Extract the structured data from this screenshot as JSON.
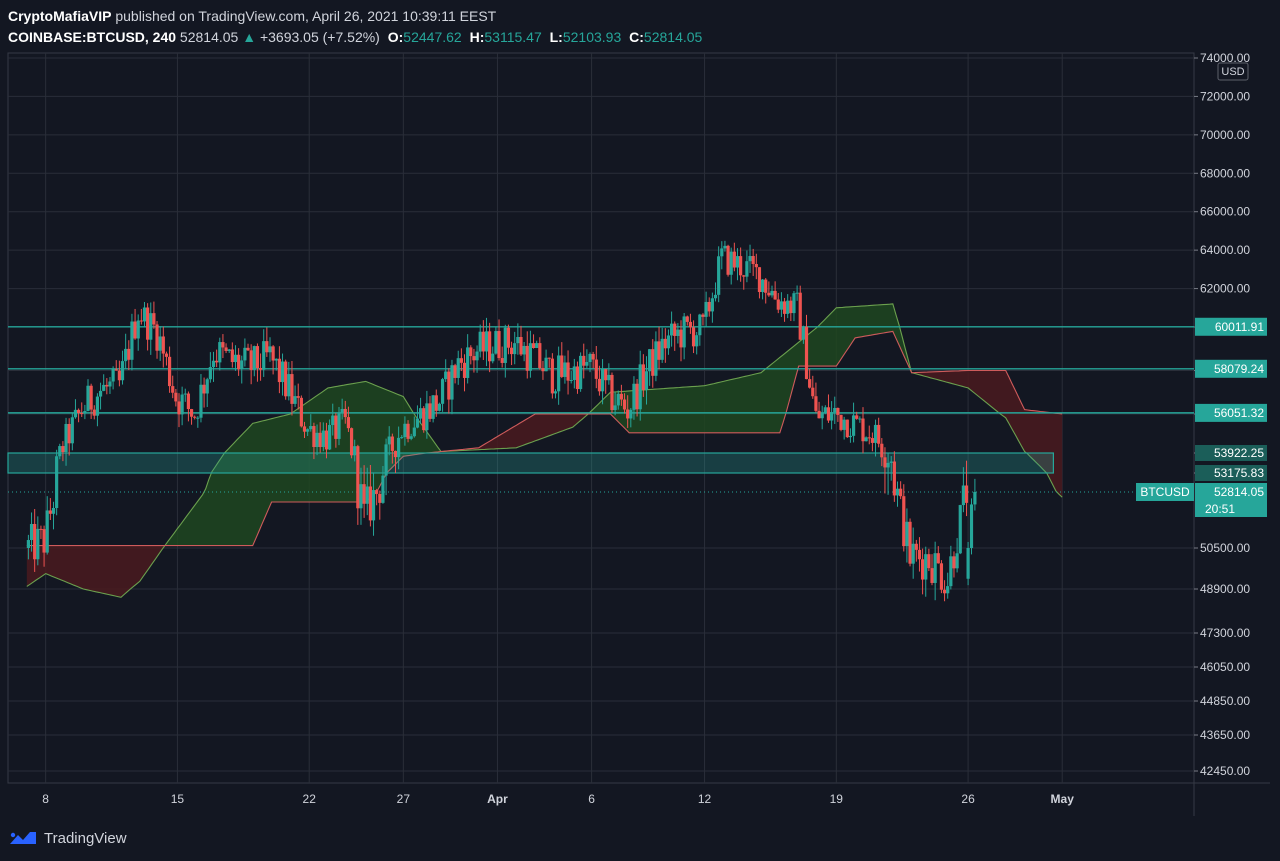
{
  "header": {
    "author": "CryptoMafiaVIP",
    "published": "published on TradingView.com, April 26, 2021 10:39:11 EEST",
    "symbol": "COINBASE:BTCUSD, 240",
    "last": "52814.05",
    "change": "+3693.05 (+7.52%)",
    "open_label": "O:",
    "open": "52447.62",
    "high_label": "H:",
    "high": "53115.47",
    "low_label": "L:",
    "low": "52103.93",
    "close_label": "C:",
    "close": "52814.05"
  },
  "footer": {
    "brand": "TradingView",
    "logo_icon": "tradingview-logo-icon"
  },
  "colors": {
    "background": "#131722",
    "grid": "#2a2e39",
    "up": "#26a69a",
    "down": "#ef5350",
    "level_line": "#26a69a",
    "cloud_bull": "#1e4620",
    "cloud_bear": "#4a1a1f",
    "span_a": "#6ba04e",
    "span_b": "#ce5b5b"
  },
  "chart_data": {
    "type": "candlestick",
    "timeframe": "240",
    "currency_label": "USD",
    "price_axis_ticks": [
      "74000.00",
      "72000.00",
      "70000.00",
      "68000.00",
      "66000.00",
      "64000.00",
      "62000.00",
      "60000.00",
      "58000.00",
      "56000.00",
      "53922.25",
      "53175.83",
      "52814.05",
      "50500.00",
      "48900.00",
      "47300.00",
      "46050.00",
      "44850.00",
      "43650.00",
      "42450.00"
    ],
    "price_axis_values": [
      74000,
      72000,
      70000,
      68000,
      66000,
      64000,
      62000,
      60000,
      58000,
      56000,
      53922.25,
      53175.83,
      52814.05,
      50500,
      48900,
      47300,
      46050,
      44850,
      43650,
      42450
    ],
    "time_ticks": [
      {
        "label": "8",
        "date": "2021-03-08"
      },
      {
        "label": "15",
        "date": "2021-03-15"
      },
      {
        "label": "22",
        "date": "2021-03-22"
      },
      {
        "label": "27",
        "date": "2021-03-27"
      },
      {
        "label": "Apr",
        "date": "2021-04-01"
      },
      {
        "label": "6",
        "date": "2021-04-06"
      },
      {
        "label": "12",
        "date": "2021-04-12"
      },
      {
        "label": "19",
        "date": "2021-04-19"
      },
      {
        "label": "26",
        "date": "2021-04-26"
      },
      {
        "label": "May",
        "date": "2021-05-01"
      }
    ],
    "horizontal_levels": [
      {
        "label": "60011.91",
        "value": 60011.91
      },
      {
        "label": "58079.24",
        "value": 58079.24
      },
      {
        "label": "56051.32",
        "value": 56051.32
      }
    ],
    "zone": {
      "upper": "53922.25",
      "lower": "53175.83",
      "upper_value": 53922.25,
      "lower_value": 53175.83
    },
    "price_tag": {
      "symbol": "BTCUSD",
      "price": "52814.05",
      "countdown": "20:51",
      "value": 52814.05
    },
    "price_series": [
      {
        "date": "2021-03-07",
        "close": 50500
      },
      {
        "date": "2021-03-08",
        "close": 50800
      },
      {
        "date": "2021-03-09",
        "close": 54300
      },
      {
        "date": "2021-03-10",
        "close": 56200
      },
      {
        "date": "2021-03-11",
        "close": 57100
      },
      {
        "date": "2021-03-12",
        "close": 57300
      },
      {
        "date": "2021-03-13",
        "close": 60800
      },
      {
        "date": "2021-03-14",
        "close": 59800
      },
      {
        "date": "2021-03-15",
        "close": 56800
      },
      {
        "date": "2021-03-16",
        "close": 56000
      },
      {
        "date": "2021-03-17",
        "close": 58900
      },
      {
        "date": "2021-03-18",
        "close": 58400
      },
      {
        "date": "2021-03-19",
        "close": 58200
      },
      {
        "date": "2021-03-20",
        "close": 58600
      },
      {
        "date": "2021-03-21",
        "close": 57100
      },
      {
        "date": "2021-03-22",
        "close": 55200
      },
      {
        "date": "2021-03-23",
        "close": 54800
      },
      {
        "date": "2021-03-24",
        "close": 55500
      },
      {
        "date": "2021-03-25",
        "close": 51800
      },
      {
        "date": "2021-03-26",
        "close": 53300
      },
      {
        "date": "2021-03-27",
        "close": 55200
      },
      {
        "date": "2021-03-28",
        "close": 55900
      },
      {
        "date": "2021-03-29",
        "close": 56600
      },
      {
        "date": "2021-03-30",
        "close": 58300
      },
      {
        "date": "2021-03-31",
        "close": 58900
      },
      {
        "date": "2021-04-01",
        "close": 59200
      },
      {
        "date": "2021-04-02",
        "close": 59300
      },
      {
        "date": "2021-04-03",
        "close": 58600
      },
      {
        "date": "2021-04-04",
        "close": 57800
      },
      {
        "date": "2021-04-05",
        "close": 57900
      },
      {
        "date": "2021-04-06",
        "close": 58200
      },
      {
        "date": "2021-04-07",
        "close": 56900
      },
      {
        "date": "2021-04-08",
        "close": 56200
      },
      {
        "date": "2021-04-09",
        "close": 58000
      },
      {
        "date": "2021-04-10",
        "close": 59300
      },
      {
        "date": "2021-04-11",
        "close": 59800
      },
      {
        "date": "2021-04-12",
        "close": 59900
      },
      {
        "date": "2021-04-13",
        "close": 63600
      },
      {
        "date": "2021-04-14",
        "close": 63200
      },
      {
        "date": "2021-04-15",
        "close": 62700
      },
      {
        "date": "2021-04-16",
        "close": 61400
      },
      {
        "date": "2021-04-17",
        "close": 61000
      },
      {
        "date": "2021-04-18",
        "close": 55800
      },
      {
        "date": "2021-04-19",
        "close": 56000
      },
      {
        "date": "2021-04-20",
        "close": 55500
      },
      {
        "date": "2021-04-21",
        "close": 55000
      },
      {
        "date": "2021-04-22",
        "close": 53800
      },
      {
        "date": "2021-04-23",
        "close": 50200
      },
      {
        "date": "2021-04-24",
        "close": 50100
      },
      {
        "date": "2021-04-25",
        "close": 49300
      },
      {
        "date": "2021-04-26",
        "close": 52814.05
      }
    ],
    "ichimoku_span_a": [
      {
        "date": "2021-03-07",
        "value": 49000
      },
      {
        "date": "2021-03-08",
        "value": 49500
      },
      {
        "date": "2021-03-10",
        "value": 48900
      },
      {
        "date": "2021-03-12",
        "value": 48600
      },
      {
        "date": "2021-03-13",
        "value": 49200
      },
      {
        "date": "2021-03-15",
        "value": 51300
      },
      {
        "date": "2021-03-17",
        "value": 53400
      },
      {
        "date": "2021-03-19",
        "value": 55500
      },
      {
        "date": "2021-03-21",
        "value": 56000
      },
      {
        "date": "2021-03-23",
        "value": 57200
      },
      {
        "date": "2021-03-25",
        "value": 57500
      },
      {
        "date": "2021-03-27",
        "value": 56800
      },
      {
        "date": "2021-03-29",
        "value": 54000
      },
      {
        "date": "2021-04-02",
        "value": 54200
      },
      {
        "date": "2021-04-05",
        "value": 55300
      },
      {
        "date": "2021-04-07",
        "value": 57000
      },
      {
        "date": "2021-04-12",
        "value": 57300
      },
      {
        "date": "2021-04-15",
        "value": 57900
      },
      {
        "date": "2021-04-18",
        "value": 60000
      },
      {
        "date": "2021-04-19",
        "value": 61000
      },
      {
        "date": "2021-04-22",
        "value": 61200
      },
      {
        "date": "2021-04-23",
        "value": 57900
      },
      {
        "date": "2021-04-26",
        "value": 57200
      },
      {
        "date": "2021-04-28",
        "value": 55800
      },
      {
        "date": "2021-04-29",
        "value": 54000
      },
      {
        "date": "2021-05-01",
        "value": 52600
      }
    ],
    "ichimoku_span_b": [
      {
        "date": "2021-03-07",
        "value": 50600
      },
      {
        "date": "2021-03-14",
        "value": 50600
      },
      {
        "date": "2021-03-19",
        "value": 50600
      },
      {
        "date": "2021-03-20",
        "value": 52400
      },
      {
        "date": "2021-03-25",
        "value": 52400
      },
      {
        "date": "2021-03-27",
        "value": 53800
      },
      {
        "date": "2021-03-31",
        "value": 54200
      },
      {
        "date": "2021-04-03",
        "value": 56000
      },
      {
        "date": "2021-04-07",
        "value": 56000
      },
      {
        "date": "2021-04-08",
        "value": 55000
      },
      {
        "date": "2021-04-16",
        "value": 55000
      },
      {
        "date": "2021-04-17",
        "value": 58200
      },
      {
        "date": "2021-04-19",
        "value": 58200
      },
      {
        "date": "2021-04-20",
        "value": 59500
      },
      {
        "date": "2021-04-22",
        "value": 59800
      },
      {
        "date": "2021-04-23",
        "value": 57900
      },
      {
        "date": "2021-04-26",
        "value": 58000
      },
      {
        "date": "2021-04-28",
        "value": 58000
      },
      {
        "date": "2021-04-29",
        "value": 56200
      },
      {
        "date": "2021-05-01",
        "value": 56000
      }
    ],
    "ylim": [
      41800,
      74300
    ],
    "xlim": [
      "2021-03-06",
      "2021-05-08"
    ],
    "grid": true,
    "legend": "none"
  }
}
